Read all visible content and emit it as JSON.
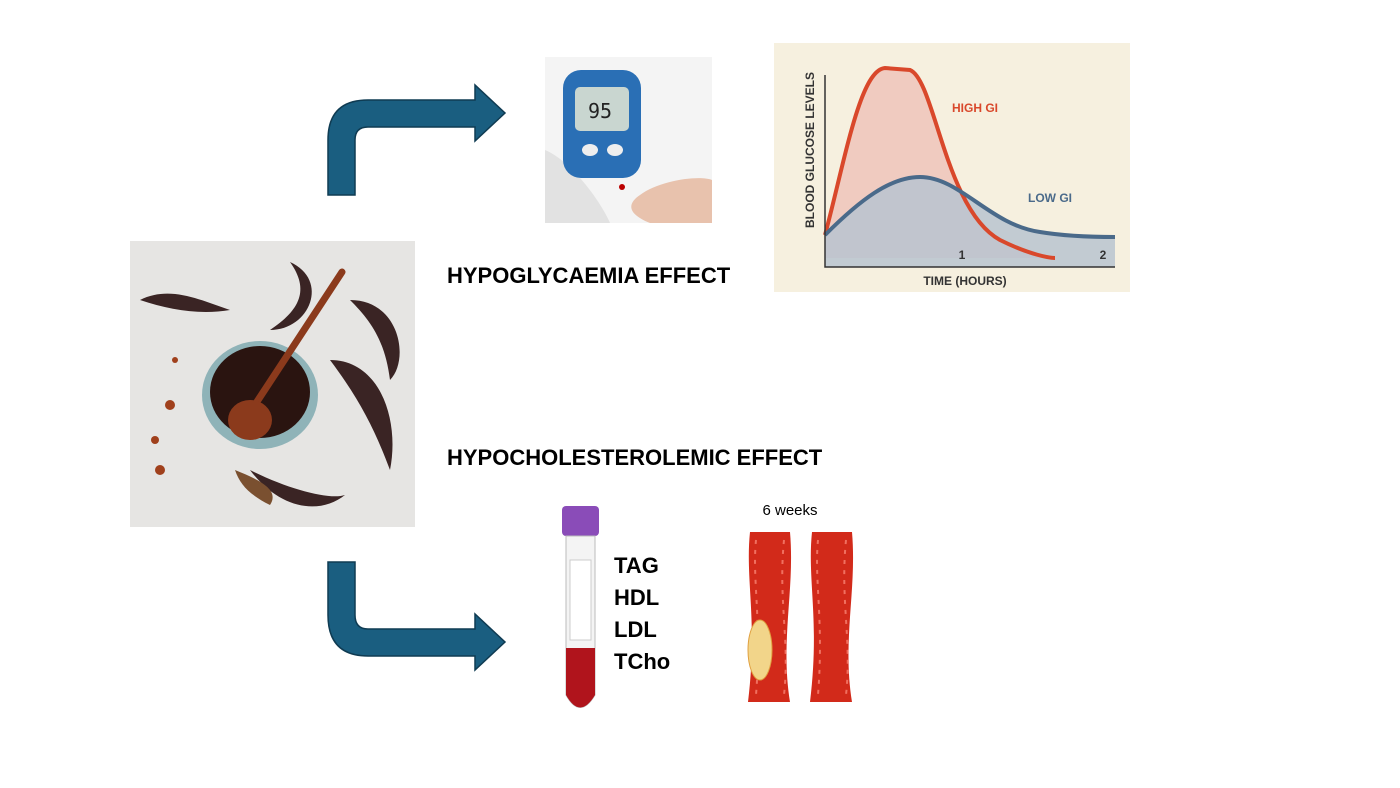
{
  "effects": {
    "top": "HYPOGLYCAEMIA EFFECT",
    "bottom": "HYPOCHOLESTEROLEMIC EFFECT"
  },
  "meter": {
    "reading": "95"
  },
  "glucose_chart": {
    "y_label": "BLOOD GLUCOSE LEVELS",
    "x_label": "TIME (HOURS)",
    "high": "HIGH GI",
    "low": "LOW GI",
    "ticks": [
      "1",
      "2"
    ]
  },
  "lipids": [
    "TAG",
    "HDL",
    "LDL",
    "TCho"
  ],
  "duration": "6 weeks"
}
